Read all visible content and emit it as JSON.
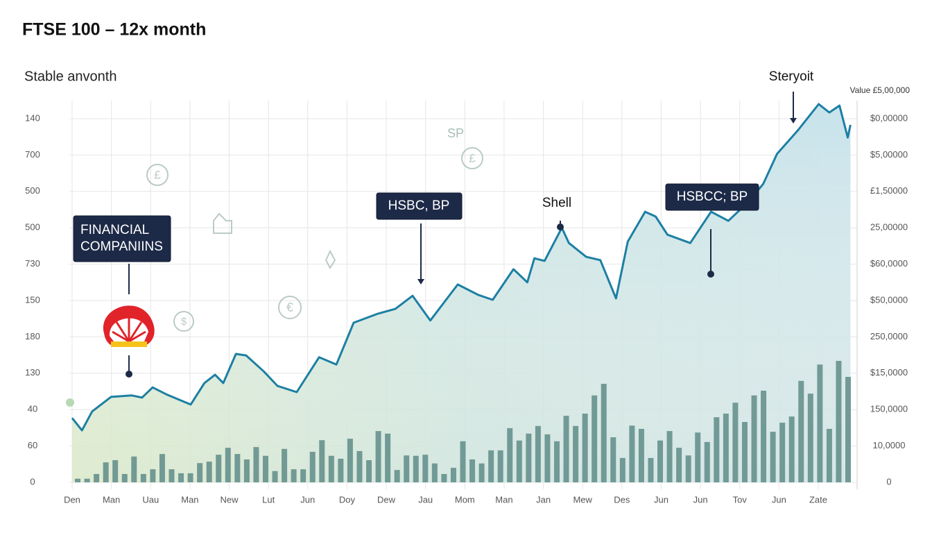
{
  "chart_data": {
    "type": "line",
    "title": "FTSE 100 – 12x month",
    "subtitle": "Stable anvonth",
    "right_axis_title": "Value £5,00,000",
    "categories": [
      "Den",
      "Man",
      "Uau",
      "Man",
      "New",
      "Lut",
      "Jun",
      "Doy",
      "Dew",
      "Jau",
      "Mom",
      "Man",
      "Jan",
      "Mew",
      "Des",
      "Jun",
      "Jun",
      "Tov",
      "Jun",
      "Zate"
    ],
    "left_axis_labels": [
      "140",
      "700",
      "500",
      "500",
      "730",
      "150",
      "180",
      "130",
      "40",
      "60",
      "0"
    ],
    "right_axis_labels": [
      "$0,00000",
      "$5,00000",
      "£1,50000",
      "25,00000",
      "$60,0000",
      "$50,0000",
      "250,0000",
      "$15,0000",
      "150,0000",
      "10,0000",
      "0"
    ],
    "xlim": [
      0,
      19
    ],
    "ylim": [
      0,
      10
    ],
    "grid": true,
    "series": [
      {
        "color": "#1c7fa3",
        "x": [
          0,
          0.25,
          0.51,
          0.99,
          1.52,
          1.78,
          2.05,
          2.4,
          3.02,
          3.37,
          3.64,
          3.85,
          4.17,
          4.43,
          4.88,
          5.23,
          5.72,
          6.29,
          6.73,
          7.17,
          7.79,
          8.23,
          8.67,
          9.12,
          9.82,
          10.35,
          10.71,
          11.24,
          11.59,
          11.77,
          12.03,
          12.47,
          12.65,
          13.09,
          13.45,
          13.85,
          14.15,
          14.59,
          14.86,
          15.16,
          15.74,
          16.27,
          16.71,
          17.24,
          17.6,
          17.95,
          18.48,
          19.01,
          19.28,
          19.54,
          19.75,
          19.82
        ],
        "values": [
          1.77,
          1.43,
          1.95,
          2.35,
          2.39,
          2.33,
          2.61,
          2.42,
          2.14,
          2.73,
          2.96,
          2.73,
          3.53,
          3.49,
          3.05,
          2.65,
          2.48,
          3.44,
          3.24,
          4.39,
          4.64,
          4.77,
          5.13,
          4.45,
          5.44,
          5.15,
          5.02,
          5.86,
          5.5,
          6.16,
          6.09,
          7.0,
          6.58,
          6.2,
          6.11,
          5.06,
          6.62,
          7.44,
          7.31,
          6.81,
          6.58,
          7.44,
          7.19,
          7.73,
          8.21,
          9.03,
          9.68,
          10.4,
          10.17,
          10.36,
          9.48,
          9.83
        ]
      }
    ],
    "bars": {
      "color": "#5f8c88",
      "values": [
        0.1,
        0.1,
        0.23,
        0.55,
        0.61,
        0.23,
        0.71,
        0.23,
        0.36,
        0.78,
        0.36,
        0.25,
        0.25,
        0.53,
        0.57,
        0.76,
        0.95,
        0.78,
        0.63,
        0.97,
        0.73,
        0.31,
        0.92,
        0.36,
        0.36,
        0.84,
        1.16,
        0.73,
        0.65,
        1.2,
        0.86,
        0.61,
        1.41,
        1.34,
        0.34,
        0.74,
        0.73,
        0.76,
        0.52,
        0.23,
        0.4,
        1.13,
        0.63,
        0.52,
        0.88,
        0.88,
        1.49,
        1.15,
        1.34,
        1.55,
        1.32,
        1.13,
        1.83,
        1.55,
        1.89,
        2.39,
        2.71,
        1.24,
        0.67,
        1.56,
        1.47,
        0.67,
        1.15,
        1.41,
        0.95,
        0.74,
        1.37,
        1.11,
        1.79,
        1.89,
        2.19,
        1.66,
        2.39,
        2.52,
        1.39,
        1.64,
        1.81,
        2.79,
        2.44,
        3.24,
        1.47,
        3.34,
        2.9
      ]
    },
    "annotations": [
      {
        "lines": [
          "FINANCIAL",
          "COMPANIINS"
        ]
      },
      {
        "lines": [
          "HSBC, BP"
        ]
      },
      {
        "lines": [
          "Shell"
        ]
      },
      {
        "lines": [
          "HSBCC; BP"
        ]
      },
      {
        "lines": [
          "SP"
        ]
      },
      {
        "lines": [
          "Steryoit"
        ]
      }
    ]
  }
}
